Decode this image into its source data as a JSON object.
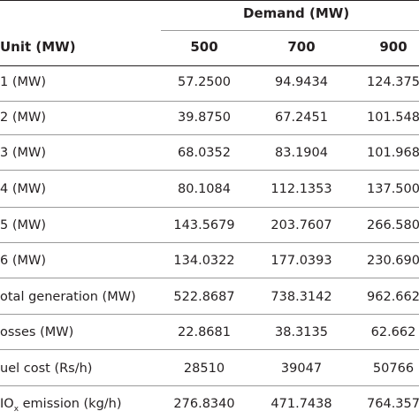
{
  "table": {
    "group_header": "Demand (MW)",
    "col_header": "Unit (MW)",
    "demands": [
      "500",
      "700",
      "900"
    ],
    "rows": [
      {
        "label": "1 (MW)",
        "values": [
          "57.2500",
          "94.9434",
          "124.375"
        ]
      },
      {
        "label": "2 (MW)",
        "values": [
          "39.8750",
          "67.2451",
          "101.548"
        ]
      },
      {
        "label": "3 (MW)",
        "values": [
          "68.0352",
          "83.1904",
          "101.968"
        ]
      },
      {
        "label": "4 (MW)",
        "values": [
          "80.1084",
          "112.1353",
          "137.500"
        ]
      },
      {
        "label": "5 (MW)",
        "values": [
          "143.5679",
          "203.7607",
          "266.580"
        ]
      },
      {
        "label": "6 (MW)",
        "values": [
          "134.0322",
          "177.0393",
          "230.690"
        ]
      },
      {
        "label": "otal generation (MW)",
        "values": [
          "522.8687",
          "738.3142",
          "962.662"
        ]
      },
      {
        "label": "osses (MW)",
        "values": [
          "22.8681",
          "38.3135",
          "62.662"
        ]
      },
      {
        "label": "uel cost (Rs/h)",
        "values": [
          "28510",
          "39047",
          "50766"
        ]
      }
    ],
    "last_row": {
      "label_main": "IO",
      "label_sub": "x",
      "label_rest": " emission (kg/h)",
      "values": [
        "276.8340",
        "471.7438",
        "764.357"
      ]
    }
  }
}
